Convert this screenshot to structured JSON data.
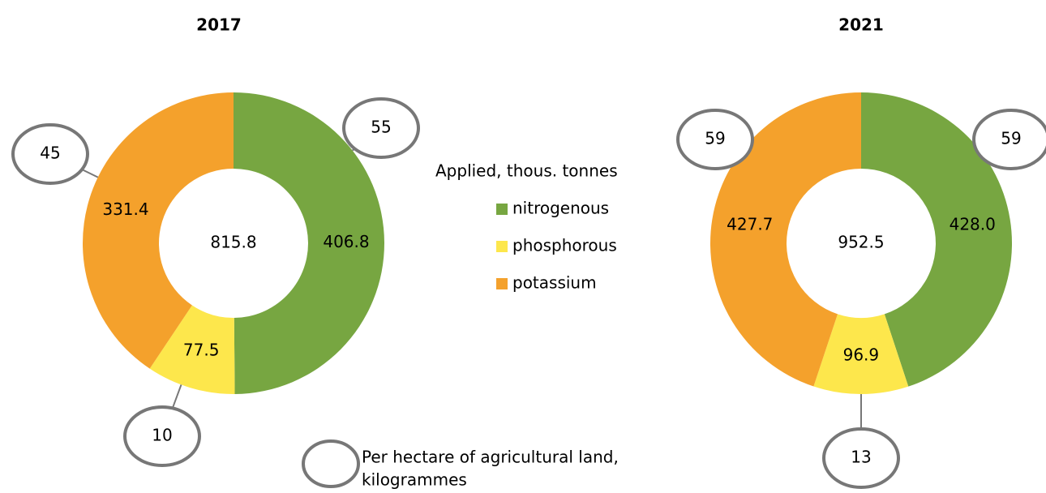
{
  "chart_data": [
    {
      "type": "donut",
      "title": "2017",
      "categories": [
        "nitrogenous",
        "phosphorous",
        "potassium"
      ],
      "colors": [
        "#77a641",
        "#fde74c",
        "#f4a12c"
      ],
      "values": [
        406.8,
        77.5,
        331.4
      ],
      "total": 815.8,
      "per_hectare": [
        55,
        10,
        45
      ]
    },
    {
      "type": "donut",
      "title": "2021",
      "categories": [
        "nitrogenous",
        "phosphorous",
        "potassium"
      ],
      "colors": [
        "#77a641",
        "#fde74c",
        "#f4a12c"
      ],
      "values": [
        428.0,
        96.9,
        427.7
      ],
      "value_labels": [
        "428.0",
        "96.9",
        "427.7"
      ],
      "total": 952.5,
      "per_hectare": [
        59,
        13,
        59
      ]
    }
  ],
  "legend": {
    "title": "Applied, thous. tonnes",
    "per_hectare_label": [
      "Per hectare of agricultural land,",
      "kilogrammes"
    ]
  }
}
